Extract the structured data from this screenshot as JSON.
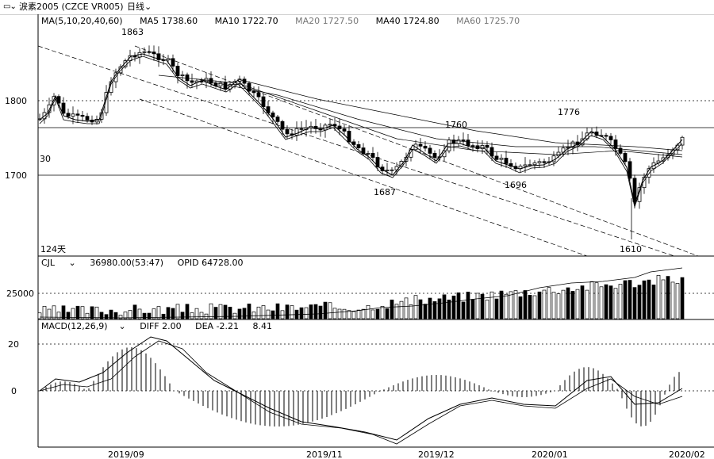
{
  "toolbar": {
    "title": "涙素2005 (CZCE VR005)",
    "period": "日线",
    "icon": "chart-icon",
    "dropdown_icon": "chevron-down-icon"
  },
  "ma_legend": {
    "label": "MA(5,10,20,40,60)",
    "ma5": "MA5 1738.60",
    "ma10": "MA10 1722.70",
    "ma20": "MA20 1727.50",
    "ma40": "MA40 1724.80",
    "ma60": "MA60 1725.70"
  },
  "price_axis": {
    "tick_1800": "1800",
    "tick_1700": "1700",
    "left_edge_label": "30"
  },
  "price_annotations": {
    "high": "1863",
    "low1": "1687",
    "mid1": "1760",
    "low2": "1696",
    "high2": "1776",
    "low3": "1610",
    "days": "124天"
  },
  "volume_legend": {
    "label": "CJL",
    "volume": "36980.00(53:47)",
    "opid": "OPID 64728.00"
  },
  "volume_axis": {
    "tick": "25000"
  },
  "macd_legend": {
    "label": "MACD(12,26,9)",
    "diff": "DIFF 2.00",
    "dea": "DEA -2.21",
    "macd": "8.41"
  },
  "macd_axis": {
    "tick_20": "20",
    "tick_0": "0"
  },
  "x_axis": {
    "labels": [
      "2019/09",
      "2019/11",
      "2019/12",
      "2020/01",
      "2020/02"
    ]
  },
  "colors": {
    "up": "#000000",
    "down": "#000000",
    "grid": "#000000",
    "background": "#ffffff"
  }
}
